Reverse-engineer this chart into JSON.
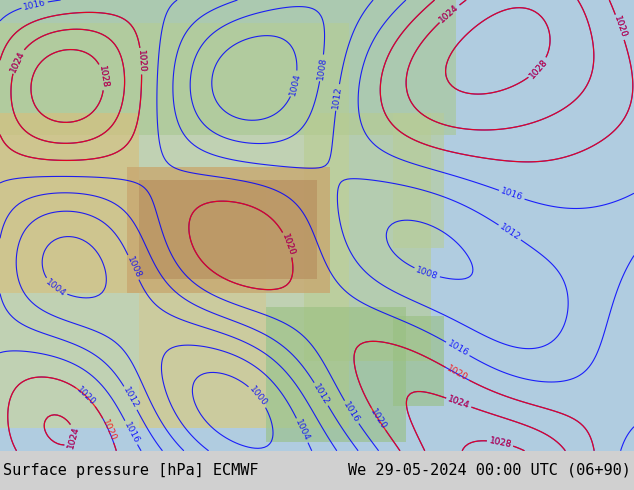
{
  "title_left": "Surface pressure [hPa] ECMWF",
  "title_right": "We 29-05-2024 00:00 UTC (06+90)",
  "bg_color": "#f0ede0",
  "map_bg": "#c8d8c0",
  "text_color": "#000000",
  "font_size": 11,
  "fig_width": 6.34,
  "fig_height": 4.9,
  "dpi": 100,
  "bottom_bar_color": "#e8e8e8",
  "bottom_bar_height": 0.08
}
